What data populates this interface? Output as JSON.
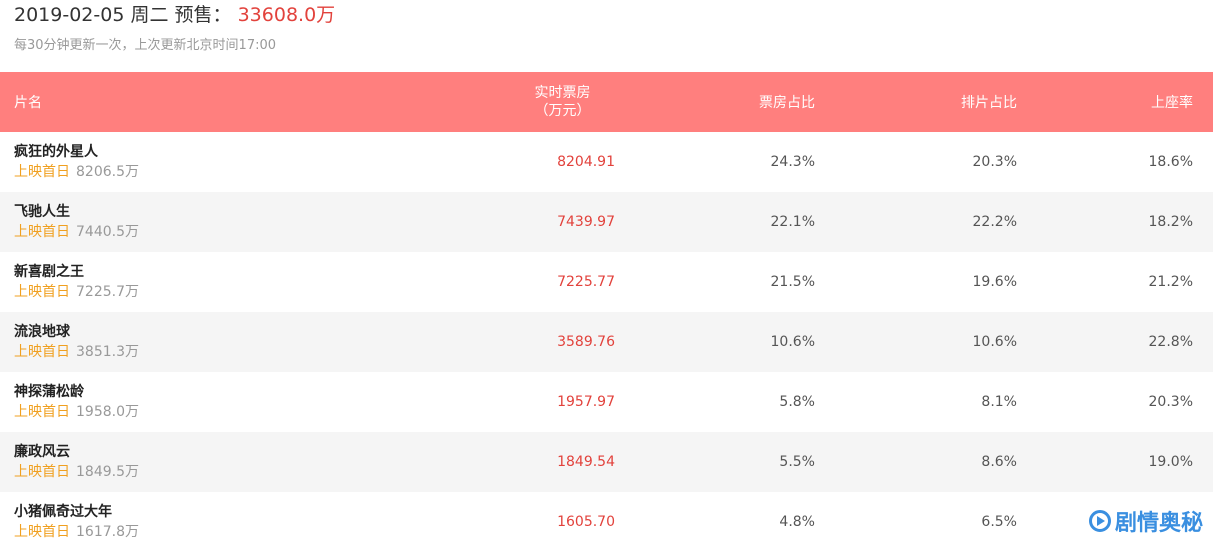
{
  "header": {
    "date": "2019-02-05",
    "weekday": "周二",
    "presale_label": "预售：",
    "presale_value": "33608.0万",
    "update_note": "每30分钟更新一次，上次更新北京时间17:00"
  },
  "table": {
    "columns": {
      "name": "片名",
      "box_line1": "实时票房",
      "box_line2": "（万元）",
      "box_ratio": "票房占比",
      "arrange_ratio": "排片占比",
      "seat_ratio": "上座率"
    },
    "rows": [
      {
        "name": "疯狂的外星人",
        "days": "上映首日",
        "total": "8206.5万",
        "box": "8204.91",
        "box_ratio": "24.3%",
        "arrange_ratio": "20.3%",
        "seat_ratio": "18.6%"
      },
      {
        "name": "飞驰人生",
        "days": "上映首日",
        "total": "7440.5万",
        "box": "7439.97",
        "box_ratio": "22.1%",
        "arrange_ratio": "22.2%",
        "seat_ratio": "18.2%"
      },
      {
        "name": "新喜剧之王",
        "days": "上映首日",
        "total": "7225.7万",
        "box": "7225.77",
        "box_ratio": "21.5%",
        "arrange_ratio": "19.6%",
        "seat_ratio": "21.2%"
      },
      {
        "name": "流浪地球",
        "days": "上映首日",
        "total": "3851.3万",
        "box": "3589.76",
        "box_ratio": "10.6%",
        "arrange_ratio": "10.6%",
        "seat_ratio": "22.8%"
      },
      {
        "name": "神探蒲松龄",
        "days": "上映首日",
        "total": "1958.0万",
        "box": "1957.97",
        "box_ratio": "5.8%",
        "arrange_ratio": "8.1%",
        "seat_ratio": "20.3%"
      },
      {
        "name": "廉政风云",
        "days": "上映首日",
        "total": "1849.5万",
        "box": "1849.54",
        "box_ratio": "5.5%",
        "arrange_ratio": "8.6%",
        "seat_ratio": "19.0%"
      },
      {
        "name": "小猪佩奇过大年",
        "days": "上映首日",
        "total": "1617.8万",
        "box": "1605.70",
        "box_ratio": "4.8%",
        "arrange_ratio": "6.5%",
        "seat_ratio": ""
      }
    ]
  },
  "watermark": {
    "text": "剧情奥秘"
  },
  "colors": {
    "header_bg": "#ff7f7e",
    "accent_red": "#e2423c",
    "days_orange": "#f0a020",
    "stripe_bg": "#f5f5f5",
    "watermark_blue": "#3a8fe0"
  }
}
